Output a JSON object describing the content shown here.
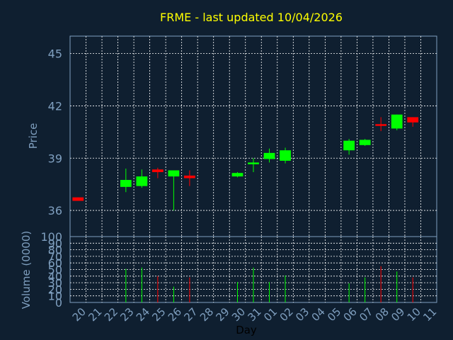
{
  "chart_data": [
    {
      "type": "candlestick",
      "title": "FRME - last updated 10/04/2026",
      "ylabel": "Price",
      "ylim": [
        34.5,
        46
      ],
      "yticks": [
        36,
        39,
        42,
        45
      ],
      "up_color": "#00ff00",
      "down_color": "#ff0000",
      "grid": true,
      "x": [
        "20",
        "21",
        "22",
        "23",
        "24",
        "25",
        "26",
        "27",
        "28",
        "29",
        "30",
        "31",
        "01",
        "02",
        "03",
        "04",
        "05",
        "06",
        "07",
        "08",
        "09",
        "10",
        "11"
      ],
      "candles": [
        {
          "x": "20",
          "open": 36.75,
          "close": 36.55,
          "high": 36.75,
          "low": 36.55
        },
        {
          "x": "23",
          "open": 37.35,
          "close": 37.75,
          "high": 38.4,
          "low": 37.05
        },
        {
          "x": "24",
          "open": 37.4,
          "close": 37.95,
          "high": 38.35,
          "low": 37.3
        },
        {
          "x": "25",
          "open": 38.35,
          "close": 38.2,
          "high": 38.45,
          "low": 37.85
        },
        {
          "x": "26",
          "open": 37.95,
          "close": 38.3,
          "high": 38.3,
          "low": 36.0
        },
        {
          "x": "27",
          "open": 38.0,
          "close": 37.85,
          "high": 38.3,
          "low": 37.4
        },
        {
          "x": "30",
          "open": 37.95,
          "close": 38.15,
          "high": 38.2,
          "low": 37.9
        },
        {
          "x": "31",
          "open": 38.65,
          "close": 38.75,
          "high": 39.0,
          "low": 38.2
        },
        {
          "x": "01",
          "open": 38.95,
          "close": 39.3,
          "high": 39.55,
          "low": 38.75
        },
        {
          "x": "02",
          "open": 38.85,
          "close": 39.45,
          "high": 39.6,
          "low": 38.7
        },
        {
          "x": "06",
          "open": 39.45,
          "close": 40.0,
          "high": 40.1,
          "low": 39.2
        },
        {
          "x": "07",
          "open": 39.75,
          "close": 40.05,
          "high": 40.1,
          "low": 39.7
        },
        {
          "x": "08",
          "open": 40.95,
          "close": 40.85,
          "high": 41.35,
          "low": 40.55
        },
        {
          "x": "09",
          "open": 40.7,
          "close": 41.5,
          "high": 41.5,
          "low": 40.6
        },
        {
          "x": "10",
          "open": 41.35,
          "close": 41.05,
          "high": 41.35,
          "low": 40.8
        }
      ]
    },
    {
      "type": "bar",
      "xlabel": "Day",
      "ylabel": "Volume (0000)",
      "ylim": [
        0,
        100
      ],
      "yticks": [
        0,
        10,
        20,
        30,
        40,
        50,
        60,
        70,
        80,
        90,
        100
      ],
      "x": [
        "20",
        "21",
        "22",
        "23",
        "24",
        "25",
        "26",
        "27",
        "28",
        "29",
        "30",
        "31",
        "01",
        "02",
        "03",
        "04",
        "05",
        "06",
        "07",
        "08",
        "09",
        "10",
        "11"
      ],
      "bars": [
        {
          "x": "23",
          "value": 51,
          "color": "#00ff00"
        },
        {
          "x": "24",
          "value": 53,
          "color": "#00ff00"
        },
        {
          "x": "25",
          "value": 40,
          "color": "#ff0000"
        },
        {
          "x": "26",
          "value": 24,
          "color": "#00ff00"
        },
        {
          "x": "27",
          "value": 38,
          "color": "#ff0000"
        },
        {
          "x": "30",
          "value": 31,
          "color": "#00ff00"
        },
        {
          "x": "31",
          "value": 53,
          "color": "#00ff00"
        },
        {
          "x": "01",
          "value": 31,
          "color": "#00ff00"
        },
        {
          "x": "02",
          "value": 41,
          "color": "#00ff00"
        },
        {
          "x": "06",
          "value": 29,
          "color": "#00ff00"
        },
        {
          "x": "07",
          "value": 38,
          "color": "#00ff00"
        },
        {
          "x": "08",
          "value": 55,
          "color": "#ff0000"
        },
        {
          "x": "09",
          "value": 47,
          "color": "#00ff00"
        },
        {
          "x": "10",
          "value": 38,
          "color": "#ff0000"
        }
      ]
    }
  ],
  "colors": {
    "background": "#0f1f30",
    "plot_background": "#0f1f30",
    "frame": "#7f9fbf",
    "grid": "#ffffff",
    "title": "#ffff00",
    "axis_text": "#7f9fbf",
    "xlabel_text": "#000000"
  }
}
